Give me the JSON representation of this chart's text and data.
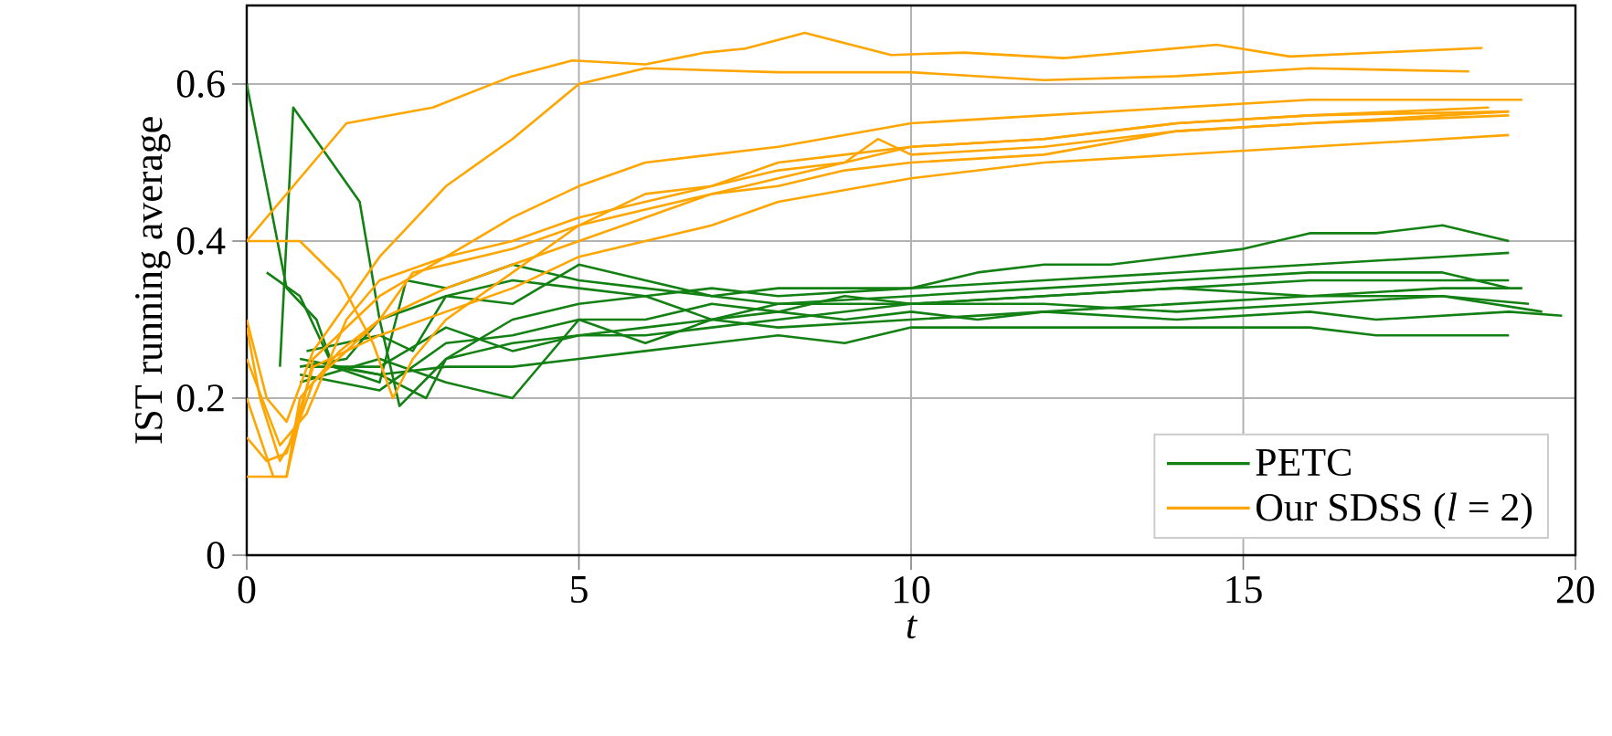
{
  "chart_data": {
    "type": "line",
    "xlabel": "t",
    "ylabel": "IST running average",
    "xlim": [
      0,
      20
    ],
    "ylim": [
      0,
      0.7
    ],
    "xticks": [
      0,
      5,
      10,
      15,
      20
    ],
    "yticks": [
      0,
      0.2,
      0.4,
      0.6
    ],
    "grid": true,
    "legend": "bottom right",
    "marker": "none",
    "series": [
      {
        "name": "PETC",
        "color": "#138013",
        "x": [
          0,
          0.6,
          1.05,
          1.3,
          2,
          2.7,
          3,
          4,
          5,
          6,
          7,
          8,
          9,
          10,
          11,
          12,
          14,
          16,
          17,
          19,
          19.8
        ],
        "values": [
          0.6,
          0.34,
          0.3,
          0.24,
          0.23,
          0.2,
          0.25,
          0.27,
          0.28,
          0.29,
          0.3,
          0.31,
          0.3,
          0.31,
          0.3,
          0.31,
          0.3,
          0.31,
          0.3,
          0.31,
          0.305
        ]
      },
      {
        "color": "#138013",
        "x": [
          0.5,
          0.7,
          1.7,
          2,
          2.3,
          3,
          4,
          5,
          6,
          7,
          8,
          10,
          12,
          14,
          16,
          18,
          19
        ],
        "values": [
          0.24,
          0.57,
          0.45,
          0.3,
          0.19,
          0.25,
          0.3,
          0.32,
          0.33,
          0.3,
          0.32,
          0.33,
          0.34,
          0.35,
          0.36,
          0.36,
          0.34
        ]
      },
      {
        "color": "#138013",
        "x": [
          0.3,
          0.8,
          1.3,
          2,
          2.4,
          3,
          4,
          5,
          6,
          7,
          8,
          10,
          11,
          12,
          13,
          14,
          15,
          16,
          17,
          18,
          19
        ],
        "values": [
          0.36,
          0.33,
          0.24,
          0.22,
          0.35,
          0.34,
          0.37,
          0.35,
          0.34,
          0.33,
          0.34,
          0.34,
          0.36,
          0.37,
          0.37,
          0.38,
          0.39,
          0.41,
          0.41,
          0.42,
          0.4
        ]
      },
      {
        "color": "#138013",
        "x": [
          0.8,
          1.5,
          2,
          3,
          4,
          5,
          6,
          7,
          8,
          10,
          12,
          14,
          16,
          18,
          19
        ],
        "values": [
          0.24,
          0.25,
          0.3,
          0.33,
          0.35,
          0.34,
          0.33,
          0.34,
          0.33,
          0.34,
          0.35,
          0.36,
          0.37,
          0.38,
          0.385
        ]
      },
      {
        "color": "#138013",
        "x": [
          0.8,
          2,
          3,
          4,
          5,
          6,
          7,
          8,
          10,
          12,
          14,
          16,
          18,
          19.2
        ],
        "values": [
          0.23,
          0.21,
          0.27,
          0.28,
          0.3,
          0.27,
          0.3,
          0.29,
          0.3,
          0.31,
          0.32,
          0.33,
          0.34,
          0.34
        ]
      },
      {
        "color": "#138013",
        "x": [
          0.8,
          2,
          3,
          4,
          5,
          6,
          7,
          8,
          9,
          10,
          12,
          14,
          16,
          18,
          19.3
        ],
        "values": [
          0.22,
          0.25,
          0.22,
          0.2,
          0.3,
          0.3,
          0.32,
          0.31,
          0.33,
          0.32,
          0.33,
          0.34,
          0.33,
          0.33,
          0.32
        ]
      },
      {
        "color": "#138013",
        "x": [
          0.9,
          2,
          3,
          4,
          5,
          6,
          7,
          8,
          10,
          12,
          14,
          16,
          18,
          19.5
        ],
        "values": [
          0.24,
          0.24,
          0.29,
          0.26,
          0.28,
          0.28,
          0.29,
          0.3,
          0.32,
          0.32,
          0.31,
          0.32,
          0.33,
          0.31
        ]
      },
      {
        "color": "#138013",
        "x": [
          0.8,
          2,
          3,
          4,
          5,
          6,
          7,
          8,
          9,
          10,
          12,
          14,
          16,
          17,
          19
        ],
        "values": [
          0.25,
          0.23,
          0.24,
          0.24,
          0.25,
          0.26,
          0.27,
          0.28,
          0.27,
          0.29,
          0.29,
          0.29,
          0.29,
          0.28,
          0.28
        ]
      },
      {
        "color": "#138013",
        "x": [
          0.9,
          2,
          2.5,
          3,
          4,
          5,
          6,
          7,
          8,
          10,
          12,
          14,
          16,
          18,
          19
        ],
        "values": [
          0.26,
          0.28,
          0.26,
          0.33,
          0.32,
          0.37,
          0.35,
          0.33,
          0.32,
          0.32,
          0.33,
          0.34,
          0.35,
          0.35,
          0.35
        ]
      },
      {
        "name": "Our SDSS (*l* = 2)",
        "color": "#ffa500",
        "x": [
          0,
          1.5,
          2.8,
          4,
          4.9,
          6,
          6.9,
          7.5,
          8.4,
          9.7,
          10.8,
          12.3,
          14.6,
          15.7,
          18.6
        ],
        "values": [
          0.4,
          0.55,
          0.57,
          0.61,
          0.63,
          0.625,
          0.64,
          0.645,
          0.665,
          0.637,
          0.64,
          0.633,
          0.65,
          0.635,
          0.646
        ]
      },
      {
        "color": "#ffa500",
        "x": [
          0,
          0.3,
          0.6,
          1,
          2,
          3,
          4,
          5,
          6,
          8,
          10,
          12,
          14,
          16,
          18.4
        ],
        "values": [
          0.3,
          0.2,
          0.17,
          0.26,
          0.38,
          0.47,
          0.53,
          0.6,
          0.62,
          0.615,
          0.615,
          0.605,
          0.61,
          0.62,
          0.616
        ]
      },
      {
        "color": "#ffa500",
        "x": [
          0,
          0.8,
          1.4,
          1.9,
          2.2,
          2.5,
          3,
          4,
          5,
          6,
          7,
          8,
          9,
          10,
          12,
          14,
          16,
          19
        ],
        "values": [
          0.4,
          0.4,
          0.35,
          0.27,
          0.2,
          0.25,
          0.3,
          0.36,
          0.42,
          0.46,
          0.47,
          0.49,
          0.5,
          0.52,
          0.53,
          0.55,
          0.56,
          0.565
        ]
      },
      {
        "color": "#ffa500",
        "x": [
          0,
          0.4,
          0.6,
          1,
          2,
          3,
          4,
          5,
          6,
          7,
          8,
          10,
          12,
          14,
          16,
          19.2
        ],
        "values": [
          0.2,
          0.1,
          0.1,
          0.25,
          0.33,
          0.38,
          0.43,
          0.47,
          0.5,
          0.51,
          0.52,
          0.55,
          0.56,
          0.57,
          0.58,
          0.58
        ]
      },
      {
        "color": "#ffa500",
        "x": [
          0,
          0.2,
          0.5,
          0.7,
          1,
          2,
          3,
          4,
          5,
          6,
          7,
          8,
          9,
          9.5,
          10,
          12,
          14,
          16,
          19
        ],
        "values": [
          0.29,
          0.2,
          0.12,
          0.15,
          0.22,
          0.3,
          0.34,
          0.37,
          0.4,
          0.43,
          0.46,
          0.48,
          0.5,
          0.53,
          0.51,
          0.52,
          0.54,
          0.55,
          0.565
        ]
      },
      {
        "color": "#ffa500",
        "x": [
          0,
          0.6,
          0.8,
          1.4,
          2,
          2.5,
          3,
          4,
          5,
          6,
          7,
          8,
          9,
          10,
          12,
          14,
          16,
          19
        ],
        "values": [
          0.1,
          0.1,
          0.2,
          0.26,
          0.3,
          0.36,
          0.37,
          0.39,
          0.42,
          0.44,
          0.46,
          0.47,
          0.49,
          0.5,
          0.51,
          0.54,
          0.55,
          0.56
        ]
      },
      {
        "color": "#ffa500",
        "x": [
          0,
          0.3,
          0.6,
          1,
          2,
          3,
          4,
          5,
          6,
          7,
          8,
          10,
          12,
          14,
          16,
          19
        ],
        "values": [
          0.15,
          0.12,
          0.13,
          0.24,
          0.28,
          0.31,
          0.34,
          0.38,
          0.4,
          0.42,
          0.45,
          0.48,
          0.5,
          0.51,
          0.52,
          0.535
        ]
      },
      {
        "color": "#ffa500",
        "x": [
          0,
          0.5,
          0.9,
          1.5,
          2,
          3,
          4,
          5,
          6,
          7,
          8,
          9,
          10,
          12,
          14,
          16,
          18.7
        ],
        "values": [
          0.25,
          0.14,
          0.18,
          0.3,
          0.35,
          0.38,
          0.4,
          0.43,
          0.45,
          0.47,
          0.5,
          0.51,
          0.52,
          0.53,
          0.55,
          0.56,
          0.57
        ]
      }
    ]
  }
}
